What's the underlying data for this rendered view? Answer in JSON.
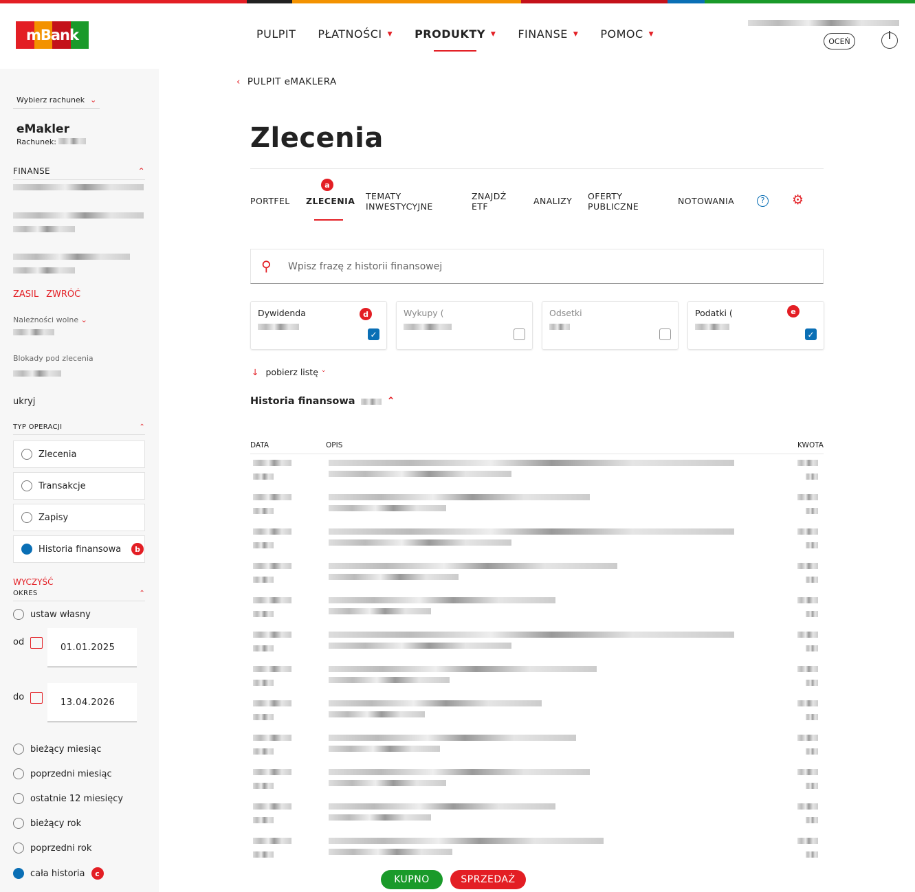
{
  "colors": {
    "accent": "#e31e24",
    "primary_blue": "#0a6fb5",
    "buy": "#1a9a2a",
    "sell": "#e31e24"
  },
  "header": {
    "logo": "mBank",
    "nav": [
      {
        "label": "PULPIT"
      },
      {
        "label": "PŁATNOŚCI"
      },
      {
        "label": "PRODUKTY"
      },
      {
        "label": "FINANSE"
      },
      {
        "label": "POMOC"
      }
    ],
    "ocen": "OCEŃ"
  },
  "sidebar": {
    "account_select": "Wybierz rachunek",
    "product": "eMakler",
    "account_label": "Rachunek:",
    "finanse": "FINANSE",
    "zasil": "ZASIL",
    "zwroc": "ZWRÓĆ",
    "naleznosci": "Należności wolne",
    "blokady": "Blokady pod zlecenia",
    "ukryj": "ukryj",
    "typ_operacji": "TYP OPERACJI",
    "operations": [
      {
        "label": "Zlecenia",
        "selected": false
      },
      {
        "label": "Transakcje",
        "selected": false
      },
      {
        "label": "Zapisy",
        "selected": false
      },
      {
        "label": "Historia finansowa",
        "selected": true,
        "badge": "b"
      }
    ],
    "wyczysc": "WYCZYŚĆ",
    "okres": "OKRES",
    "custom": "ustaw własny",
    "from_label": "od",
    "from": "01.01.2025",
    "to_label": "do",
    "to": "13.04.2026",
    "periods": [
      {
        "label": "bieżący miesiąc",
        "selected": false
      },
      {
        "label": "poprzedni miesiąc",
        "selected": false
      },
      {
        "label": "ostatnie 12 miesięcy",
        "selected": false
      },
      {
        "label": "bieżący rok",
        "selected": false
      },
      {
        "label": "poprzedni rok",
        "selected": false
      },
      {
        "label": "cała historia",
        "selected": true,
        "badge": "c"
      }
    ]
  },
  "main": {
    "breadcrumb": "PULPIT eMAKLERA",
    "title": "Zlecenia",
    "tabs": [
      "PORTFEL",
      "ZLECENIA",
      "TEMATY INWESTYCYJNE",
      "ZNAJDŹ ETF",
      "ANALIZY",
      "OFERTY PUBLICZNE",
      "NOTOWANIA"
    ],
    "active_tab_badge": "a",
    "search_placeholder": "Wpisz frazę z historii finansowej",
    "filters": [
      {
        "label": "Dywidenda",
        "checked": true,
        "badge": "d"
      },
      {
        "label": "Wykupy (",
        "checked": false
      },
      {
        "label": "Odsetki",
        "checked": false
      },
      {
        "label": "Podatki (",
        "checked": true,
        "badge": "e"
      }
    ],
    "download": "pobierz listę",
    "history_title": "Historia finansowa",
    "columns": [
      "DATA",
      "OPIS",
      "KWOTA"
    ],
    "buy": "KUPNO",
    "sell": "SPRZEDAŻ"
  }
}
